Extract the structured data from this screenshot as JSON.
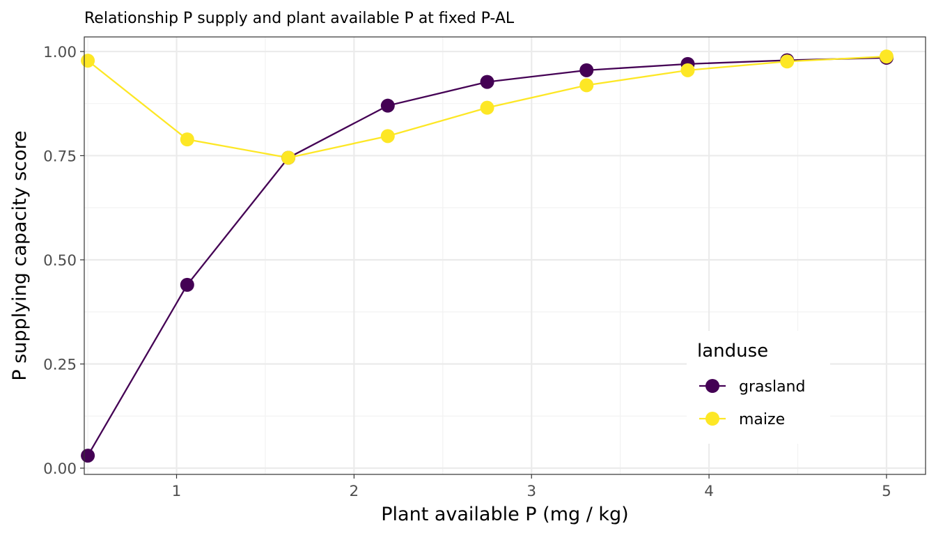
{
  "chart_data": {
    "type": "line",
    "title": "Relationship P supply and plant available P at fixed P-AL",
    "xlabel": "Plant available P (mg / kg)",
    "ylabel": "P supplying capacity score",
    "xlim": [
      0.48,
      5.22
    ],
    "ylim": [
      -0.015,
      1.035
    ],
    "xticks": [
      1,
      2,
      3,
      4,
      5
    ],
    "xtick_labels": [
      "1",
      "2",
      "3",
      "4",
      "5"
    ],
    "yticks": [
      0,
      0.25,
      0.5,
      0.75,
      1
    ],
    "ytick_labels": [
      "0.00",
      "0.25",
      "0.50",
      "0.75",
      "1.00"
    ],
    "grid": true,
    "legend": {
      "title": "landuse",
      "position": "bottom-right inside"
    },
    "x": [
      0.5,
      1.06,
      1.63,
      2.19,
      2.75,
      3.31,
      3.88,
      4.44,
      5.0
    ],
    "series": [
      {
        "name": "grasland",
        "color": "#440154",
        "values": [
          0.03,
          0.44,
          0.745,
          0.87,
          0.927,
          0.955,
          0.97,
          0.979,
          0.985
        ]
      },
      {
        "name": "maize",
        "color": "#FDE725",
        "values": [
          0.978,
          0.789,
          0.745,
          0.797,
          0.865,
          0.919,
          0.955,
          0.976,
          0.988
        ]
      }
    ]
  }
}
